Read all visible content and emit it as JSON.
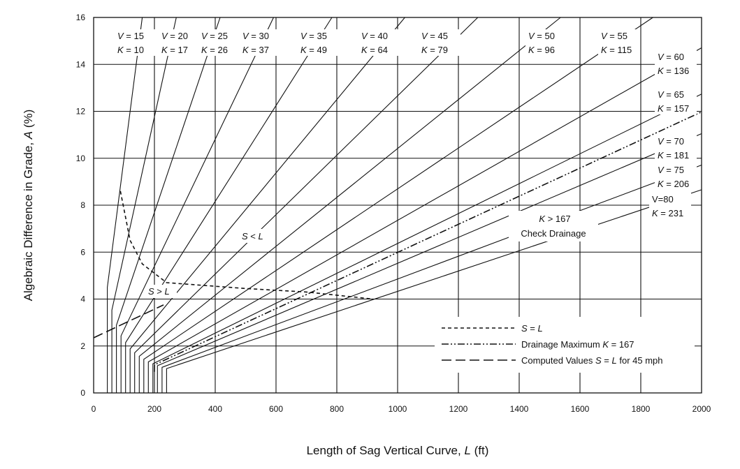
{
  "chart_data": {
    "type": "line",
    "xlabel": {
      "text": "Length of Sag Vertical Curve, ",
      "var": "L",
      "unit": " (ft)"
    },
    "ylabel": {
      "text": "Algebraic Difference in Grade, ",
      "var": "A",
      "unit": " (%)"
    },
    "xlim": [
      0,
      2000
    ],
    "ylim": [
      0,
      16
    ],
    "xticks": [
      0,
      200,
      400,
      600,
      800,
      1000,
      1200,
      1400,
      1600,
      1800,
      2000
    ],
    "yticks": [
      0,
      2,
      4,
      6,
      8,
      10,
      12,
      14,
      16
    ],
    "grid": true,
    "curves": [
      {
        "V": "15",
        "K": "10",
        "min_length": 45
      },
      {
        "V": "20",
        "K": "17",
        "min_length": 60
      },
      {
        "V": "25",
        "K": "26",
        "min_length": 75
      },
      {
        "V": "30",
        "K": "37",
        "min_length": 90
      },
      {
        "V": "35",
        "K": "49",
        "min_length": 105
      },
      {
        "V": "40",
        "K": "64",
        "min_length": 120
      },
      {
        "V": "45",
        "K": "79",
        "min_length": 135
      },
      {
        "V": "50",
        "K": "96",
        "min_length": 150
      },
      {
        "V": "55",
        "K": "115",
        "min_length": 165
      },
      {
        "V": "60",
        "K": "136",
        "min_length": 180
      },
      {
        "V": "65",
        "K": "157",
        "min_length": 195
      },
      {
        "V": "70",
        "K": "181",
        "min_length": 210
      },
      {
        "V": "75",
        "K": "206",
        "min_length": 225
      },
      {
        "V": "80",
        "K": "231",
        "min_length": 240
      }
    ],
    "s_equals_l_boundary": [
      [
        88,
        8.6
      ],
      [
        120,
        6.5
      ],
      [
        160,
        5.5
      ],
      [
        240,
        4.7
      ],
      [
        500,
        4.45
      ],
      [
        700,
        4.3
      ],
      [
        920,
        4.0
      ]
    ],
    "drainage_max_K": 167,
    "computed_45mph": [
      [
        0,
        2.35
      ],
      [
        230,
        3.75
      ]
    ],
    "annotations": {
      "s_less_l": "S < L",
      "s_greater_l": "S > L",
      "check_drainage_1": "K > 167",
      "check_drainage_2": "Check Drainage"
    },
    "legend": {
      "placement": "bottom-right",
      "items": [
        {
          "style": "dashed",
          "label": "S = L"
        },
        {
          "style": "dash-dot-dot",
          "label": "Drainage Maximum K = 167"
        },
        {
          "style": "long-dash",
          "label": "Computed Values S = L for 45 mph"
        }
      ]
    }
  }
}
